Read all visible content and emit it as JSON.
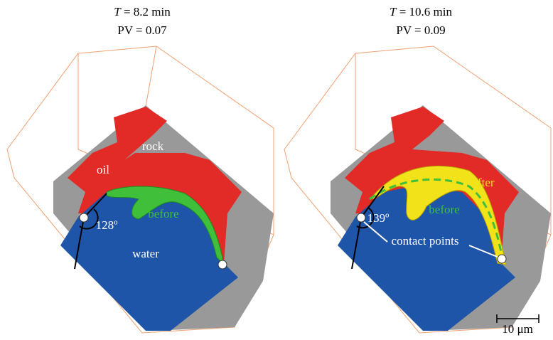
{
  "panels": [
    {
      "title": {
        "symbol": "T",
        "text": "= 8.2 min"
      },
      "subtitle": "PV = 0.07",
      "labels": {
        "rock": "rock",
        "oil": "oil",
        "before": "before",
        "angle": "128º",
        "water": "water"
      }
    },
    {
      "title": {
        "symbol": "T",
        "text": "= 10.6 min"
      },
      "subtitle": "PV = 0.09",
      "labels": {
        "after": "after",
        "before": "before",
        "angle": "139º",
        "contact": "contact points"
      }
    }
  ],
  "scale_bar": "10 μm"
}
